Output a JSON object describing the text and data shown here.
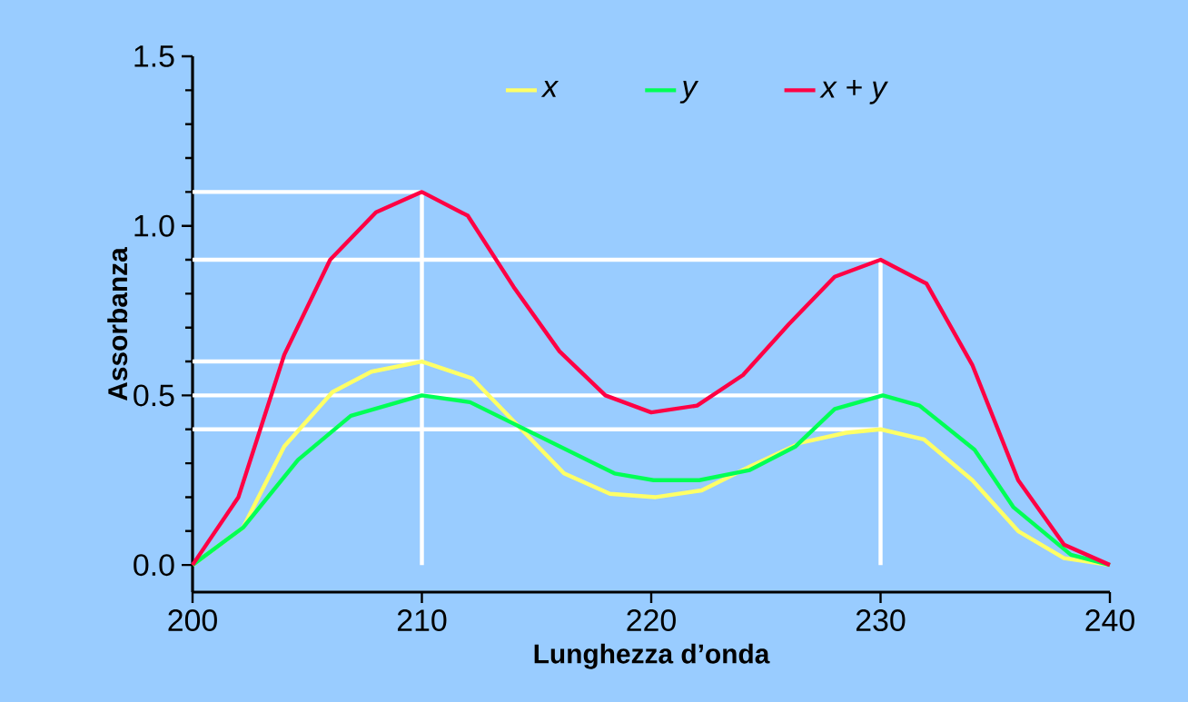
{
  "chart_data": {
    "type": "line",
    "xlabel": "Lunghezza d’onda",
    "ylabel": "Assorbanza",
    "xlim": [
      200,
      240
    ],
    "ylim": [
      -0.08,
      1.5
    ],
    "xticks": [
      200,
      210,
      220,
      230,
      240
    ],
    "yticks": [
      {
        "value": 0,
        "label": "0.0"
      },
      {
        "value": 0.1,
        "label": null
      },
      {
        "value": 0.2,
        "label": null
      },
      {
        "value": 0.3,
        "label": null
      },
      {
        "value": 0.4,
        "label": null
      },
      {
        "value": 0.5,
        "label": "0.5"
      },
      {
        "value": 0.6,
        "label": null
      },
      {
        "value": 0.7,
        "label": null
      },
      {
        "value": 0.8,
        "label": null
      },
      {
        "value": 0.9,
        "label": null
      },
      {
        "value": 1.0,
        "label": "1.0"
      },
      {
        "value": 1.1,
        "label": null
      },
      {
        "value": 1.2,
        "label": null
      },
      {
        "value": 1.3,
        "label": null
      },
      {
        "value": 1.4,
        "label": null
      },
      {
        "value": 1.5,
        "label": "1.5"
      }
    ],
    "legend": "top",
    "marker": "none",
    "line_style": "solid",
    "grid": false,
    "series": [
      {
        "color": "#ffffff",
        "x": [
          200,
          210,
          210
        ],
        "values": [
          1.1,
          1.1,
          0
        ]
      },
      {
        "color": "#ffffff",
        "x": [
          200,
          230,
          230
        ],
        "values": [
          0.9,
          0.9,
          0
        ]
      },
      {
        "color": "#ffffff",
        "x": [
          200,
          210
        ],
        "values": [
          0.6,
          0.6
        ]
      },
      {
        "color": "#ffffff",
        "x": [
          200,
          230
        ],
        "values": [
          0.5,
          0.5
        ]
      },
      {
        "color": "#ffffff",
        "x": [
          200,
          230
        ],
        "values": [
          0.4,
          0.4
        ]
      },
      {
        "name": "x",
        "color": "#ffff66",
        "x": [
          200,
          202.2,
          204,
          206.1,
          207.8,
          210,
          212.2,
          216.2,
          218.2,
          220.2,
          222.2,
          224.3,
          226.5,
          228.5,
          230,
          231.9,
          234,
          236,
          238,
          240
        ],
        "values": [
          0,
          0.11,
          0.35,
          0.51,
          0.57,
          0.6,
          0.55,
          0.27,
          0.21,
          0.2,
          0.22,
          0.29,
          0.36,
          0.39,
          0.4,
          0.37,
          0.25,
          0.1,
          0.02,
          0
        ]
      },
      {
        "name": "y",
        "color": "#00ff55",
        "x": [
          200,
          202.2,
          204.6,
          206.9,
          210,
          212.1,
          218.4,
          220.1,
          222.1,
          224.3,
          226.3,
          228,
          230.1,
          231.7,
          234.1,
          235.8,
          238.3,
          240
        ],
        "values": [
          0,
          0.11,
          0.31,
          0.44,
          0.5,
          0.48,
          0.27,
          0.25,
          0.25,
          0.28,
          0.35,
          0.46,
          0.5,
          0.47,
          0.34,
          0.17,
          0.03,
          0
        ]
      },
      {
        "name": "x + y",
        "color": "#ff0044",
        "x": [
          200,
          202,
          204,
          206,
          208,
          210,
          212,
          214,
          216,
          218,
          220,
          222,
          224,
          226,
          228,
          230,
          232,
          234,
          236,
          238,
          240
        ],
        "values": [
          0,
          0.2,
          0.62,
          0.9,
          1.04,
          1.1,
          1.03,
          0.82,
          0.63,
          0.5,
          0.45,
          0.47,
          0.56,
          0.71,
          0.85,
          0.9,
          0.83,
          0.59,
          0.25,
          0.06,
          0
        ]
      }
    ]
  }
}
